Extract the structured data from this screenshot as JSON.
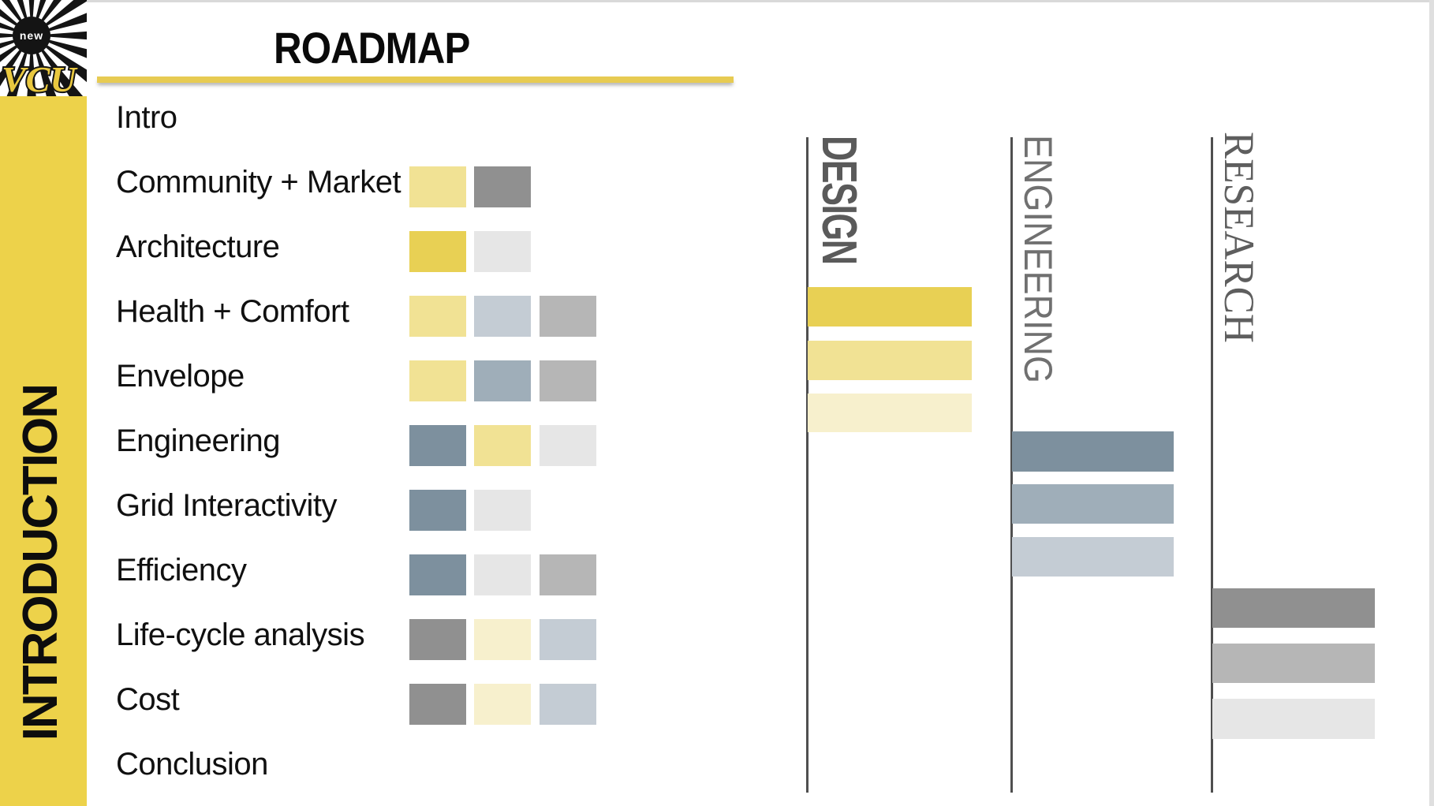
{
  "header": {
    "title": "ROADMAP"
  },
  "logo": {
    "top_text": "new",
    "brand": "VCU"
  },
  "sidebar": {
    "label": "INTRODUCTION"
  },
  "palette": {
    "gold": "#E8D054",
    "light_yellow": "#F1E294",
    "pale_yellow": "#F7F0CD",
    "slate_dark": "#7D909E",
    "slate_medium": "#9FAEB9",
    "slate_light": "#C4CCD4",
    "gray_dark": "#909090",
    "gray_medium": "#B6B6B6",
    "gray_light": "#E6E6E6",
    "underline_accent": "#E7CB52",
    "sidebar_yellow": "#EDD24A",
    "logo_gold": "#E9C83F",
    "line_gray": "#4F4F4F"
  },
  "roadmap_rows": [
    {
      "label": "Intro",
      "swatches": []
    },
    {
      "label": "Community + Market",
      "swatches": [
        "light_yellow",
        "gray_dark"
      ]
    },
    {
      "label": "Architecture",
      "swatches": [
        "gold",
        "gray_light"
      ]
    },
    {
      "label": "Health + Comfort",
      "swatches": [
        "light_yellow",
        "slate_light",
        "gray_medium"
      ]
    },
    {
      "label": "Envelope",
      "swatches": [
        "light_yellow",
        "slate_medium",
        "gray_medium"
      ]
    },
    {
      "label": "Engineering",
      "swatches": [
        "slate_dark",
        "light_yellow",
        "gray_light"
      ]
    },
    {
      "label": "Grid Interactivity",
      "swatches": [
        "slate_dark",
        "gray_light"
      ]
    },
    {
      "label": "Efficiency",
      "swatches": [
        "slate_dark",
        "gray_light",
        "gray_medium"
      ]
    },
    {
      "label": "Life-cycle analysis",
      "swatches": [
        "gray_dark",
        "pale_yellow",
        "slate_light"
      ]
    },
    {
      "label": "Cost",
      "swatches": [
        "gray_dark",
        "pale_yellow",
        "slate_light"
      ]
    },
    {
      "label": "Conclusion",
      "swatches": []
    }
  ],
  "gantt_columns": [
    {
      "label": "DESIGN",
      "bars": [
        "gold",
        "light_yellow",
        "pale_yellow"
      ]
    },
    {
      "label": "ENGINEERING",
      "bars": [
        "slate_dark",
        "slate_medium",
        "slate_light"
      ]
    },
    {
      "label": "RESEARCH",
      "bars": [
        "gray_dark",
        "gray_medium",
        "gray_light"
      ]
    }
  ]
}
